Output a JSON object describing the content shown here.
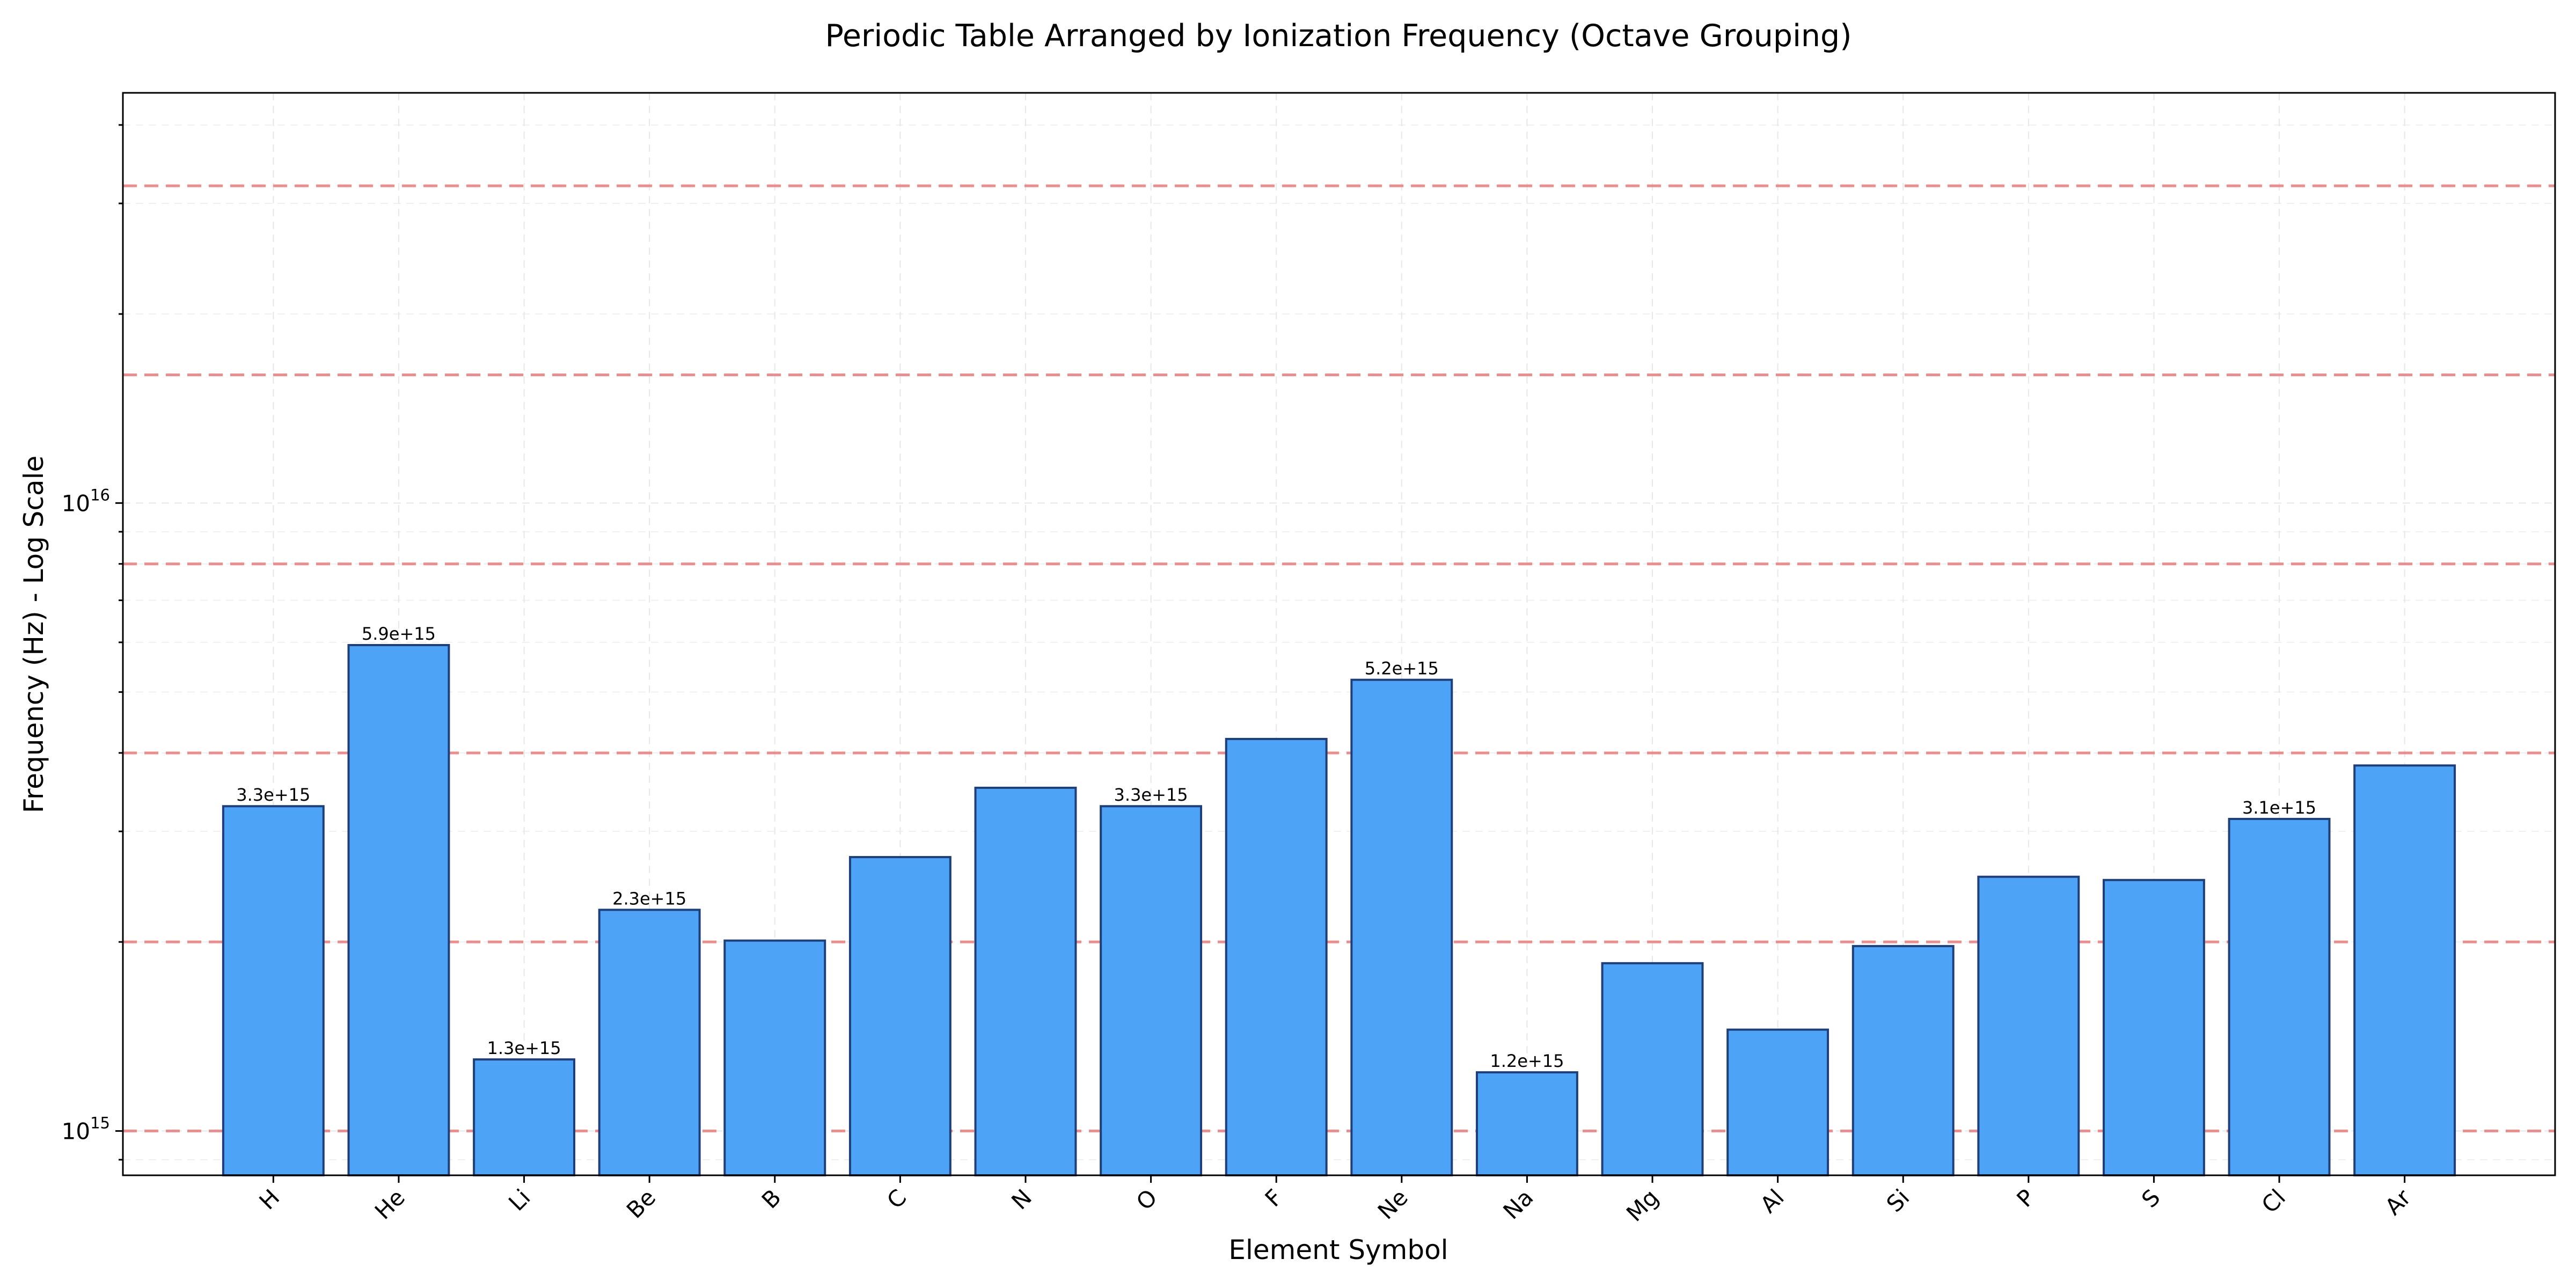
{
  "chart_data": {
    "type": "bar",
    "title": "Periodic Table Arranged by Ionization Frequency (Octave Grouping)",
    "xlabel": "Element Symbol",
    "ylabel": "Frequency (Hz) - Log Scale",
    "yscale": "log",
    "ylim": [
      850000000000000,
      45000000000000000
    ],
    "yticks": [
      {
        "value": 1000000000000000,
        "base": "10",
        "exp": "15"
      },
      {
        "value": 10000000000000000,
        "base": "10",
        "exp": "16"
      }
    ],
    "categories": [
      "H",
      "He",
      "Li",
      "Be",
      "B",
      "C",
      "N",
      "O",
      "F",
      "Ne",
      "Na",
      "Mg",
      "Al",
      "Si",
      "P",
      "S",
      "Cl",
      "Ar"
    ],
    "values": [
      3290000000000000.0,
      5940000000000000.0,
      1300000000000000.0,
      2250000000000000.0,
      2010000000000000.0,
      2730000000000000.0,
      3520000000000000.0,
      3290000000000000.0,
      4210000000000000.0,
      5230000000000000.0,
      1240000000000000.0,
      1850000000000000.0,
      1450000000000000.0,
      1970000000000000.0,
      2540000000000000.0,
      2510000000000000.0,
      3140000000000000.0,
      3820000000000000.0
    ],
    "data_labels": [
      "3.3e+15",
      "5.9e+15",
      "1.3e+15",
      "2.3e+15",
      "",
      "",
      "",
      "3.3e+15",
      "",
      "5.2e+15",
      "1.2e+15",
      "",
      "",
      "",
      "",
      "",
      "3.1e+15",
      ""
    ],
    "octave_lines": [
      1000000000000000.0,
      2000000000000000.0,
      4000000000000000.0,
      8000000000000000.0,
      1.6e+16,
      3.2e+16
    ],
    "grid": true,
    "colors": {
      "bar_fill": "#4da3f5",
      "bar_edge": "#1f3f7a",
      "octave_line": "#f08080"
    }
  }
}
